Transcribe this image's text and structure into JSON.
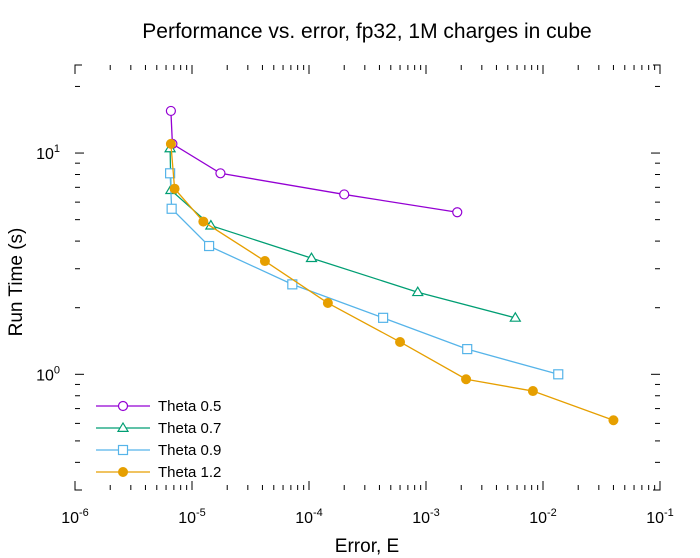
{
  "chart_data": {
    "type": "line",
    "title": "Performance vs. error, fp32, 1M charges in cube",
    "xlabel": "Error, E",
    "ylabel": "Run Time (s)",
    "xscale": "log",
    "yscale": "log",
    "xlim": [
      1e-06,
      0.1
    ],
    "ylim": [
      0.3,
      25
    ],
    "grid": false,
    "legend_position": "bottom-left",
    "x_tick_labels": [
      {
        "base": "10",
        "exp": "-6"
      },
      {
        "base": "10",
        "exp": "-5"
      },
      {
        "base": "10",
        "exp": "-4"
      },
      {
        "base": "10",
        "exp": "-3"
      },
      {
        "base": "10",
        "exp": "-2"
      },
      {
        "base": "10",
        "exp": "-1"
      }
    ],
    "y_tick_labels": [
      {
        "base": "10",
        "exp": "0"
      },
      {
        "base": "10",
        "exp": "1"
      }
    ],
    "series": [
      {
        "name": "Theta 0.5",
        "color": "#9400d3",
        "marker": "circle-open",
        "points": [
          [
            6.6e-06,
            15.5
          ],
          [
            6.8e-06,
            11.0
          ],
          [
            1.75e-05,
            8.1
          ],
          [
            0.0002,
            6.5
          ],
          [
            0.00185,
            5.4
          ]
        ]
      },
      {
        "name": "Theta 0.7",
        "color": "#009e73",
        "marker": "triangle-open",
        "points": [
          [
            6.5e-06,
            10.5
          ],
          [
            6.6e-06,
            6.8
          ],
          [
            1.45e-05,
            4.7
          ],
          [
            0.000105,
            3.35
          ],
          [
            0.00085,
            2.35
          ],
          [
            0.0058,
            1.8
          ]
        ]
      },
      {
        "name": "Theta 0.9",
        "color": "#56b4e9",
        "marker": "square-open",
        "points": [
          [
            6.5e-06,
            8.1
          ],
          [
            6.7e-06,
            5.6
          ],
          [
            1.4e-05,
            3.8
          ],
          [
            7.2e-05,
            2.55
          ],
          [
            0.00043,
            1.8
          ],
          [
            0.00225,
            1.3
          ],
          [
            0.0135,
            1.0
          ]
        ]
      },
      {
        "name": "Theta 1.2",
        "color": "#e69f00",
        "marker": "circle-filled",
        "points": [
          [
            6.6e-06,
            11.0
          ],
          [
            7.1e-06,
            6.9
          ],
          [
            1.25e-05,
            4.9
          ],
          [
            4.2e-05,
            3.25
          ],
          [
            0.000145,
            2.1
          ],
          [
            0.0006,
            1.4
          ],
          [
            0.0022,
            0.95
          ],
          [
            0.0082,
            0.84
          ],
          [
            0.04,
            0.62
          ]
        ]
      }
    ]
  }
}
